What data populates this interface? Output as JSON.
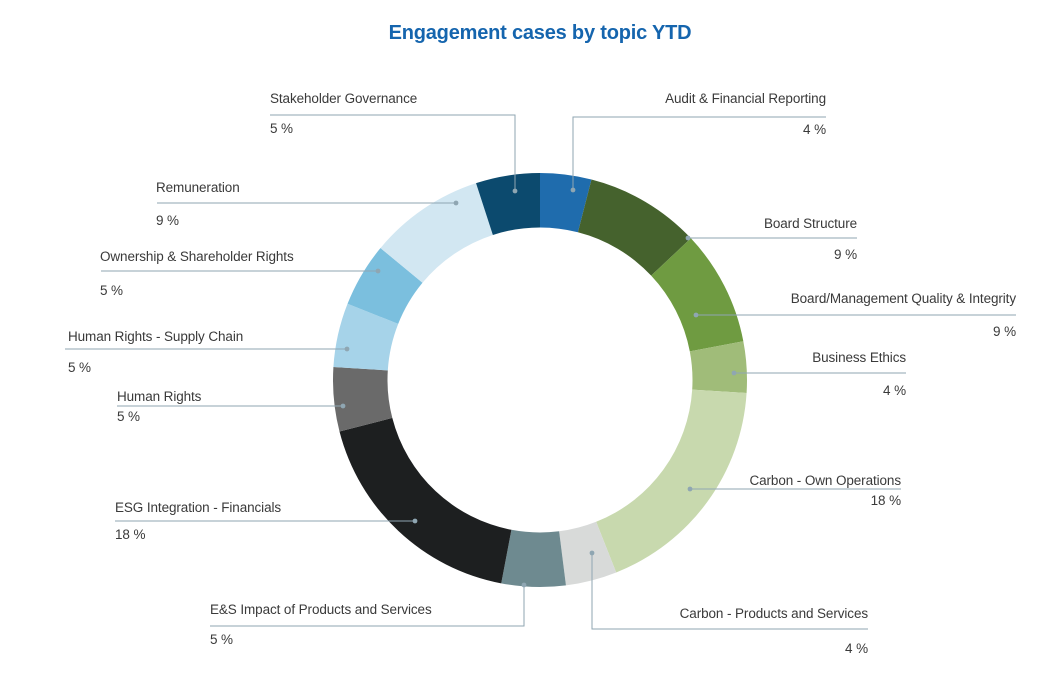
{
  "chart_data": {
    "type": "pie",
    "subtype": "donut",
    "title": "Engagement cases by topic YTD",
    "title_color": "#1565AE",
    "value_suffix": " %",
    "start_angle_deg": 0,
    "direction": "clockwise",
    "legend_position": "callout-labels",
    "label_text_color": "#3A3A3A",
    "leader_line_color": "#8FA6B2",
    "segments": [
      {
        "label": "Audit & Financial Reporting",
        "value": 4,
        "display_value": "4 %",
        "color": "#1F6CAD"
      },
      {
        "label": "Board Structure",
        "value": 9,
        "display_value": "9 %",
        "color": "#45622D"
      },
      {
        "label": "Board/Management Quality & Integrity",
        "value": 9,
        "display_value": "9 %",
        "color": "#6F9B41"
      },
      {
        "label": "Business Ethics",
        "value": 4,
        "display_value": "4 %",
        "color": "#A0BC79"
      },
      {
        "label": "Carbon - Own Operations",
        "value": 18,
        "display_value": "18 %",
        "color": "#C8D9AE"
      },
      {
        "label": "Carbon - Products and Services",
        "value": 4,
        "display_value": "4 %",
        "color": "#D8DAD9"
      },
      {
        "label": "E&S Impact of Products and Services",
        "value": 5,
        "display_value": "5 %",
        "color": "#6E8A90"
      },
      {
        "label": "ESG Integration - Financials",
        "value": 18,
        "display_value": "18 %",
        "color": "#1D1F20"
      },
      {
        "label": "Human Rights",
        "value": 5,
        "display_value": "5 %",
        "color": "#6A6A6A"
      },
      {
        "label": "Human Rights - Supply Chain",
        "value": 5,
        "display_value": "5 %",
        "color": "#A6D3E9"
      },
      {
        "label": "Ownership & Shareholder Rights",
        "value": 5,
        "display_value": "5 %",
        "color": "#7BBFDE"
      },
      {
        "label": "Remuneration",
        "value": 9,
        "display_value": "9 %",
        "color": "#D2E7F2"
      },
      {
        "label": "Stakeholder Governance",
        "value": 5,
        "display_value": "5 %",
        "color": "#0C4A6E"
      }
    ]
  }
}
